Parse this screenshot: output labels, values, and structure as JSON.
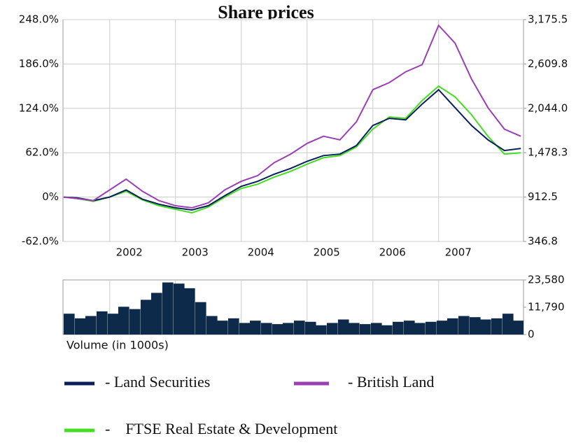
{
  "chart_data": [
    {
      "type": "line",
      "title": "Share prices",
      "x": [
        2001.3,
        2001.5,
        2001.75,
        2002.0,
        2002.25,
        2002.5,
        2002.75,
        2003.0,
        2003.25,
        2003.5,
        2003.75,
        2004.0,
        2004.25,
        2004.5,
        2004.75,
        2005.0,
        2005.25,
        2005.5,
        2005.75,
        2006.0,
        2006.25,
        2006.5,
        2006.75,
        2007.0,
        2007.25,
        2007.5,
        2007.75,
        2008.0,
        2008.25
      ],
      "series": [
        {
          "name": "- Land Securities",
          "color": "#0b1f5c",
          "values": [
            0,
            -1,
            -5,
            0,
            10,
            -3,
            -10,
            -15,
            -18,
            -12,
            2,
            15,
            22,
            32,
            40,
            50,
            58,
            60,
            72,
            100,
            110,
            108,
            130,
            150,
            125,
            100,
            80,
            65,
            68
          ]
        },
        {
          "name": "- British Land",
          "color": "#9b3fb5",
          "values": [
            0,
            -2,
            -5,
            10,
            25,
            8,
            -5,
            -12,
            -15,
            -8,
            10,
            22,
            30,
            48,
            60,
            75,
            85,
            80,
            105,
            150,
            160,
            175,
            185,
            240,
            215,
            165,
            125,
            95,
            85
          ]
        },
        {
          "name": "-    FTSE Real Estate & Development",
          "color": "#44dd22",
          "values": [
            0,
            -2,
            -6,
            0,
            8,
            -4,
            -12,
            -17,
            -22,
            -14,
            0,
            12,
            18,
            28,
            36,
            46,
            55,
            58,
            70,
            95,
            112,
            110,
            135,
            155,
            140,
            115,
            85,
            60,
            62
          ]
        }
      ],
      "xlim": [
        2001.29,
        2008.29
      ],
      "xticks": [
        2002,
        2003,
        2004,
        2005,
        2006,
        2007
      ],
      "ylim": [
        -62,
        248
      ],
      "yticks": [
        {
          "value": -62,
          "label": "-62.0%"
        },
        {
          "value": 0,
          "label": "0%"
        },
        {
          "value": 62,
          "label": "62.0%"
        },
        {
          "value": 124,
          "label": "124.0%"
        },
        {
          "value": 186,
          "label": "186.0%"
        },
        {
          "value": 248,
          "label": "248.0%"
        }
      ],
      "y2lim": [
        346.8,
        3175.5
      ],
      "y2ticks": [
        346.8,
        912.5,
        {
          "value": 1478.3,
          "label": "1,478.3"
        },
        {
          "value": 2044.0,
          "label": "2,044.0"
        },
        {
          "value": 2609.8,
          "label": "2,609.8"
        },
        {
          "value": 3175.5,
          "label": "3,175.5"
        }
      ],
      "grid": true,
      "legend": "bottom"
    },
    {
      "type": "bar",
      "xlabel": "Volume (in 1000s)",
      "color": "#0d2a4a",
      "x": [
        2001.3,
        2001.47,
        2001.63,
        2001.8,
        2001.97,
        2002.13,
        2002.3,
        2002.47,
        2002.63,
        2002.8,
        2002.97,
        2003.13,
        2003.3,
        2003.47,
        2003.63,
        2003.8,
        2003.97,
        2004.13,
        2004.3,
        2004.47,
        2004.63,
        2004.8,
        2004.97,
        2005.13,
        2005.3,
        2005.47,
        2005.63,
        2005.8,
        2005.97,
        2006.13,
        2006.3,
        2006.47,
        2006.63,
        2006.8,
        2006.97,
        2007.13,
        2007.3,
        2007.47,
        2007.63,
        2007.8,
        2007.97,
        2008.13
      ],
      "values": [
        9000,
        7000,
        8000,
        10000,
        9000,
        12000,
        11000,
        15000,
        18000,
        22500,
        22000,
        20000,
        14000,
        8000,
        6000,
        7000,
        5000,
        6000,
        5000,
        4500,
        5000,
        6000,
        5500,
        4000,
        5000,
        6500,
        5000,
        4500,
        5000,
        4000,
        5500,
        6000,
        5000,
        5500,
        6000,
        7000,
        8000,
        7500,
        6500,
        7000,
        9000,
        6000
      ],
      "xlim": [
        2001.29,
        2008.29
      ],
      "ylim": [
        0,
        23580
      ],
      "yticks": [
        0,
        {
          "value": 11790,
          "label": "11,790"
        },
        {
          "value": 23580,
          "label": "23,580"
        }
      ]
    }
  ]
}
